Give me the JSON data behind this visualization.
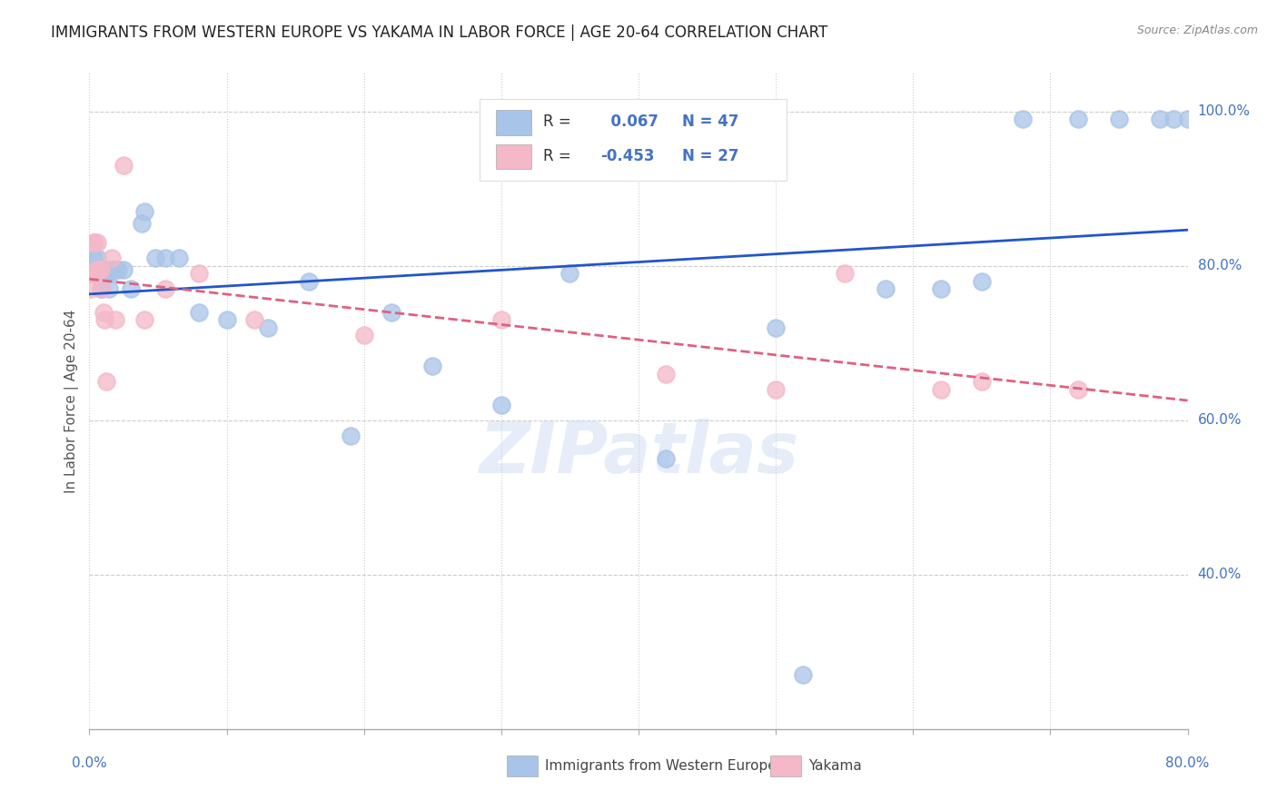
{
  "title": "IMMIGRANTS FROM WESTERN EUROPE VS YAKAMA IN LABOR FORCE | AGE 20-64 CORRELATION CHART",
  "source": "Source: ZipAtlas.com",
  "ylabel": "In Labor Force | Age 20-64",
  "legend_blue_label": "Immigrants from Western Europe",
  "legend_pink_label": "Yakama",
  "R_blue": 0.067,
  "N_blue": 47,
  "R_pink": -0.453,
  "N_pink": 27,
  "blue_color": "#a8c4e8",
  "pink_color": "#f4b8c8",
  "trendline_blue": "#2255cc",
  "trendline_pink": "#e06080",
  "background": "#ffffff",
  "grid_color": "#cccccc",
  "title_color": "#222222",
  "axis_label_color": "#4472c4",
  "blue_x": [
    0.001,
    0.002,
    0.003,
    0.004,
    0.005,
    0.006,
    0.007,
    0.008,
    0.009,
    0.01,
    0.011,
    0.012,
    0.013,
    0.014,
    0.015,
    0.016,
    0.017,
    0.019,
    0.021,
    0.025,
    0.03,
    0.038,
    0.04,
    0.048,
    0.055,
    0.065,
    0.08,
    0.1,
    0.13,
    0.16,
    0.19,
    0.22,
    0.25,
    0.3,
    0.35,
    0.42,
    0.5,
    0.52,
    0.58,
    0.62,
    0.65,
    0.68,
    0.72,
    0.75,
    0.78,
    0.79,
    0.8
  ],
  "blue_y": [
    0.795,
    0.79,
    0.81,
    0.795,
    0.795,
    0.81,
    0.795,
    0.77,
    0.77,
    0.79,
    0.795,
    0.795,
    0.79,
    0.77,
    0.79,
    0.795,
    0.795,
    0.795,
    0.795,
    0.795,
    0.77,
    0.855,
    0.87,
    0.81,
    0.81,
    0.81,
    0.74,
    0.73,
    0.72,
    0.78,
    0.58,
    0.74,
    0.67,
    0.62,
    0.79,
    0.55,
    0.72,
    0.27,
    0.77,
    0.77,
    0.78,
    0.99,
    0.99,
    0.99,
    0.99,
    0.99,
    0.99
  ],
  "pink_x": [
    0.001,
    0.002,
    0.003,
    0.004,
    0.005,
    0.006,
    0.007,
    0.008,
    0.009,
    0.01,
    0.011,
    0.012,
    0.016,
    0.019,
    0.025,
    0.04,
    0.055,
    0.08,
    0.12,
    0.2,
    0.3,
    0.42,
    0.5,
    0.55,
    0.62,
    0.65,
    0.72
  ],
  "pink_y": [
    0.77,
    0.79,
    0.83,
    0.83,
    0.795,
    0.83,
    0.795,
    0.795,
    0.77,
    0.74,
    0.73,
    0.65,
    0.81,
    0.73,
    0.93,
    0.73,
    0.77,
    0.79,
    0.73,
    0.71,
    0.73,
    0.66,
    0.64,
    0.79,
    0.64,
    0.65,
    0.64
  ],
  "xlim": [
    0.0,
    0.8
  ],
  "ylim": [
    0.2,
    1.05
  ]
}
